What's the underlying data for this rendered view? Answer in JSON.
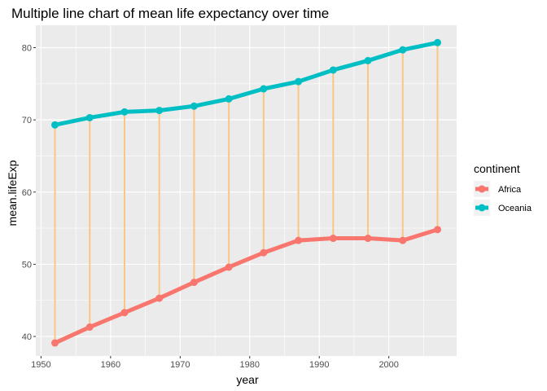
{
  "chart_data": {
    "type": "line",
    "title": "Multiple line chart of mean life expectancy over time",
    "xlabel": "year",
    "ylabel": "mean.lifeExp",
    "xlim": [
      1949.25,
      2009.75
    ],
    "ylim": [
      37.3,
      83.1
    ],
    "x_ticks": [
      1950,
      1960,
      1970,
      1980,
      1990,
      2000
    ],
    "y_ticks": [
      40,
      50,
      60,
      70,
      80
    ],
    "grid": true,
    "legend_title": "continent",
    "legend_position": "right",
    "x": [
      1952,
      1957,
      1962,
      1967,
      1972,
      1977,
      1982,
      1987,
      1992,
      1997,
      2002,
      2007
    ],
    "series": [
      {
        "name": "Africa",
        "color": "#F8766D",
        "values": [
          39.1,
          41.3,
          43.3,
          45.3,
          47.5,
          49.6,
          51.6,
          53.3,
          53.6,
          53.6,
          53.3,
          54.8
        ]
      },
      {
        "name": "Oceania",
        "color": "#00BFC4",
        "values": [
          69.3,
          70.3,
          71.1,
          71.3,
          71.9,
          72.9,
          74.3,
          75.3,
          76.9,
          78.2,
          79.7,
          80.7
        ]
      }
    ],
    "connector_color": "#F9C784"
  }
}
